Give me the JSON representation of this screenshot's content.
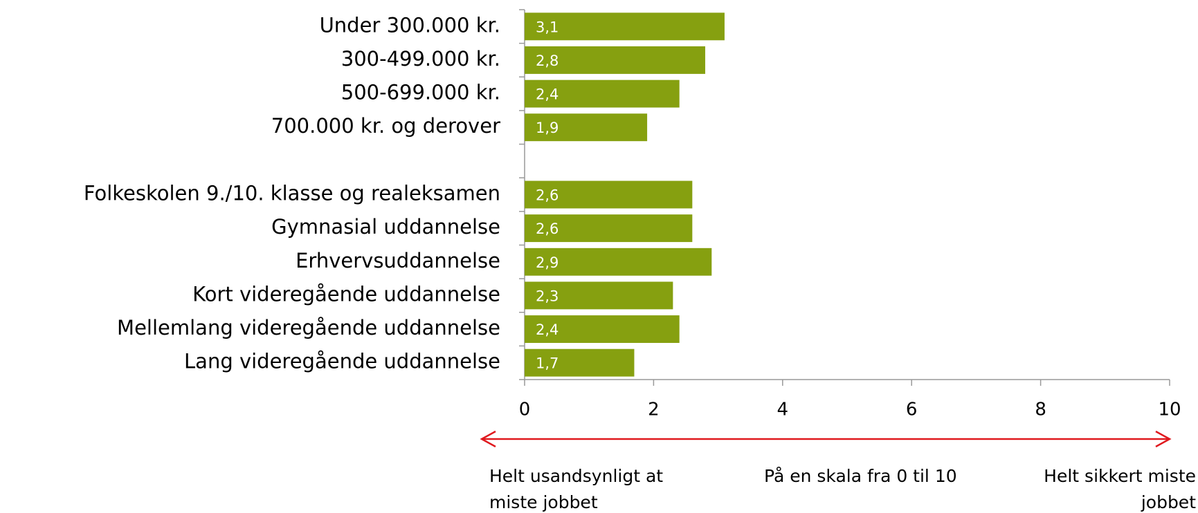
{
  "chart_data": {
    "type": "bar",
    "orientation": "horizontal",
    "categories": [
      "Under 300.000 kr.",
      "300-499.000 kr.",
      "500-699.000 kr.",
      "700.000 kr. og derover",
      null,
      "Folkeskolen 9./10. klasse og realeksamen",
      "Gymnasial uddannelse",
      "Erhvervsuddannelse",
      "Kort videregående uddannelse",
      "Mellemlang videregående uddannelse",
      "Lang videregående uddannelse"
    ],
    "values": [
      3.1,
      2.8,
      2.4,
      1.9,
      null,
      2.6,
      2.6,
      2.9,
      2.3,
      2.4,
      1.7
    ],
    "value_labels": [
      "3,1",
      "2,8",
      "2,4",
      "1,9",
      null,
      "2,6",
      "2,6",
      "2,9",
      "2,3",
      "2,4",
      "1,7"
    ],
    "color": "#86a010",
    "xlim": [
      0,
      10
    ],
    "xticks": [
      0,
      2,
      4,
      6,
      8,
      10
    ],
    "grid": false,
    "annotations": [
      [
        "Helt usandsynligt at",
        "miste jobbet"
      ],
      [
        "På en skala fra 0 til 10"
      ],
      [
        "Helt sikkert miste",
        "jobbet"
      ]
    ],
    "arrow_color": "#e0191e"
  }
}
